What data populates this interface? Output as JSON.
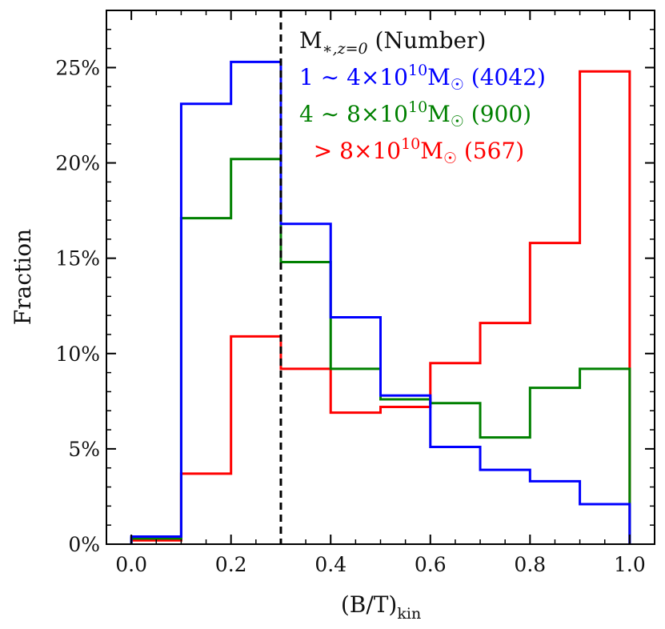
{
  "chart_data": {
    "type": "histogram-step",
    "xlabel": "(B/T)",
    "xlabel_sub": "kin",
    "ylabel": "Fraction",
    "xlim": [
      -0.05,
      1.05
    ],
    "ylim": [
      0,
      28
    ],
    "bin_edges": [
      0.0,
      0.1,
      0.2,
      0.3,
      0.4,
      0.5,
      0.6,
      0.7,
      0.8,
      0.9,
      1.0
    ],
    "x_ticks": [
      0.0,
      0.2,
      0.4,
      0.6,
      0.8,
      1.0
    ],
    "x_tick_labels": [
      "0.0",
      "0.2",
      "0.4",
      "0.6",
      "0.8",
      "1.0"
    ],
    "y_ticks": [
      0,
      5,
      10,
      15,
      20,
      25
    ],
    "y_tick_labels": [
      "0%",
      "5%",
      "10%",
      "15%",
      "20%",
      "25%"
    ],
    "vline": {
      "x": 0.3,
      "style": "dashed",
      "color": "#000000"
    },
    "legend_title": "M*,z=0 (Number)",
    "series": [
      {
        "name": "1 ~ 4×10¹⁰M☉ (4042)",
        "color": "#0000ff",
        "values": [
          0.4,
          23.1,
          25.3,
          16.8,
          11.9,
          7.8,
          5.1,
          3.9,
          3.3,
          2.1
        ]
      },
      {
        "name": "4 ~ 8×10¹⁰M☉ (900)",
        "color": "#008000",
        "values": [
          0.3,
          17.1,
          20.2,
          14.8,
          9.2,
          7.6,
          7.4,
          5.6,
          8.2,
          9.2
        ]
      },
      {
        "name": "> 8×10¹⁰M☉ (567)",
        "color": "#ff0000",
        "values": [
          0.2,
          3.7,
          10.9,
          9.2,
          6.9,
          7.2,
          9.5,
          11.6,
          15.8,
          24.8
        ]
      }
    ]
  },
  "legend": {
    "title_main": "M",
    "title_sub": "∗,z=0",
    "title_rest": " (Number)",
    "entries": [
      {
        "prefix": "1 ∼ 4×10",
        "exp": "10",
        "unit": "M",
        "sun": "☉",
        "count": " (4042)",
        "color": "#0000ff"
      },
      {
        "prefix": "4 ∼ 8×10",
        "exp": "10",
        "unit": "M",
        "sun": "☉",
        "count": " (900)",
        "color": "#008000"
      },
      {
        "prefix": "  > 8×10",
        "exp": "10",
        "unit": "M",
        "sun": "☉",
        "count": " (567)",
        "color": "#ff0000"
      }
    ]
  }
}
